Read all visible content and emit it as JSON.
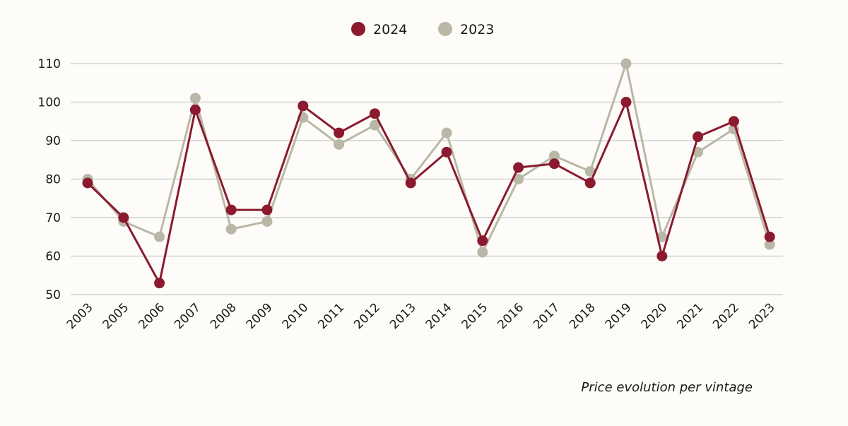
{
  "chart_data": {
    "type": "line",
    "caption": "Price evolution per vintage",
    "categories": [
      "2003",
      "2005",
      "2006",
      "2007",
      "2008",
      "2009",
      "2010",
      "2011",
      "2012",
      "2013",
      "2014",
      "2015",
      "2016",
      "2017",
      "2018",
      "2019",
      "2020",
      "2021",
      "2022",
      "2023"
    ],
    "ylim": [
      50,
      110
    ],
    "yticks": [
      50,
      60,
      70,
      80,
      90,
      100,
      110
    ],
    "grid": true,
    "legend_position": "top-center",
    "series": [
      {
        "name": "2024",
        "color": "#8b1a2f",
        "values": [
          79,
          70,
          53,
          98,
          72,
          72,
          99,
          92,
          97,
          79,
          87,
          64,
          83,
          84,
          79,
          100,
          60,
          91,
          95,
          65
        ]
      },
      {
        "name": "2023",
        "color": "#b9b8a7",
        "values": [
          80,
          69,
          65,
          101,
          67,
          69,
          96,
          89,
          94,
          80,
          92,
          61,
          80,
          86,
          82,
          110,
          65,
          87,
          93,
          63
        ]
      }
    ]
  }
}
